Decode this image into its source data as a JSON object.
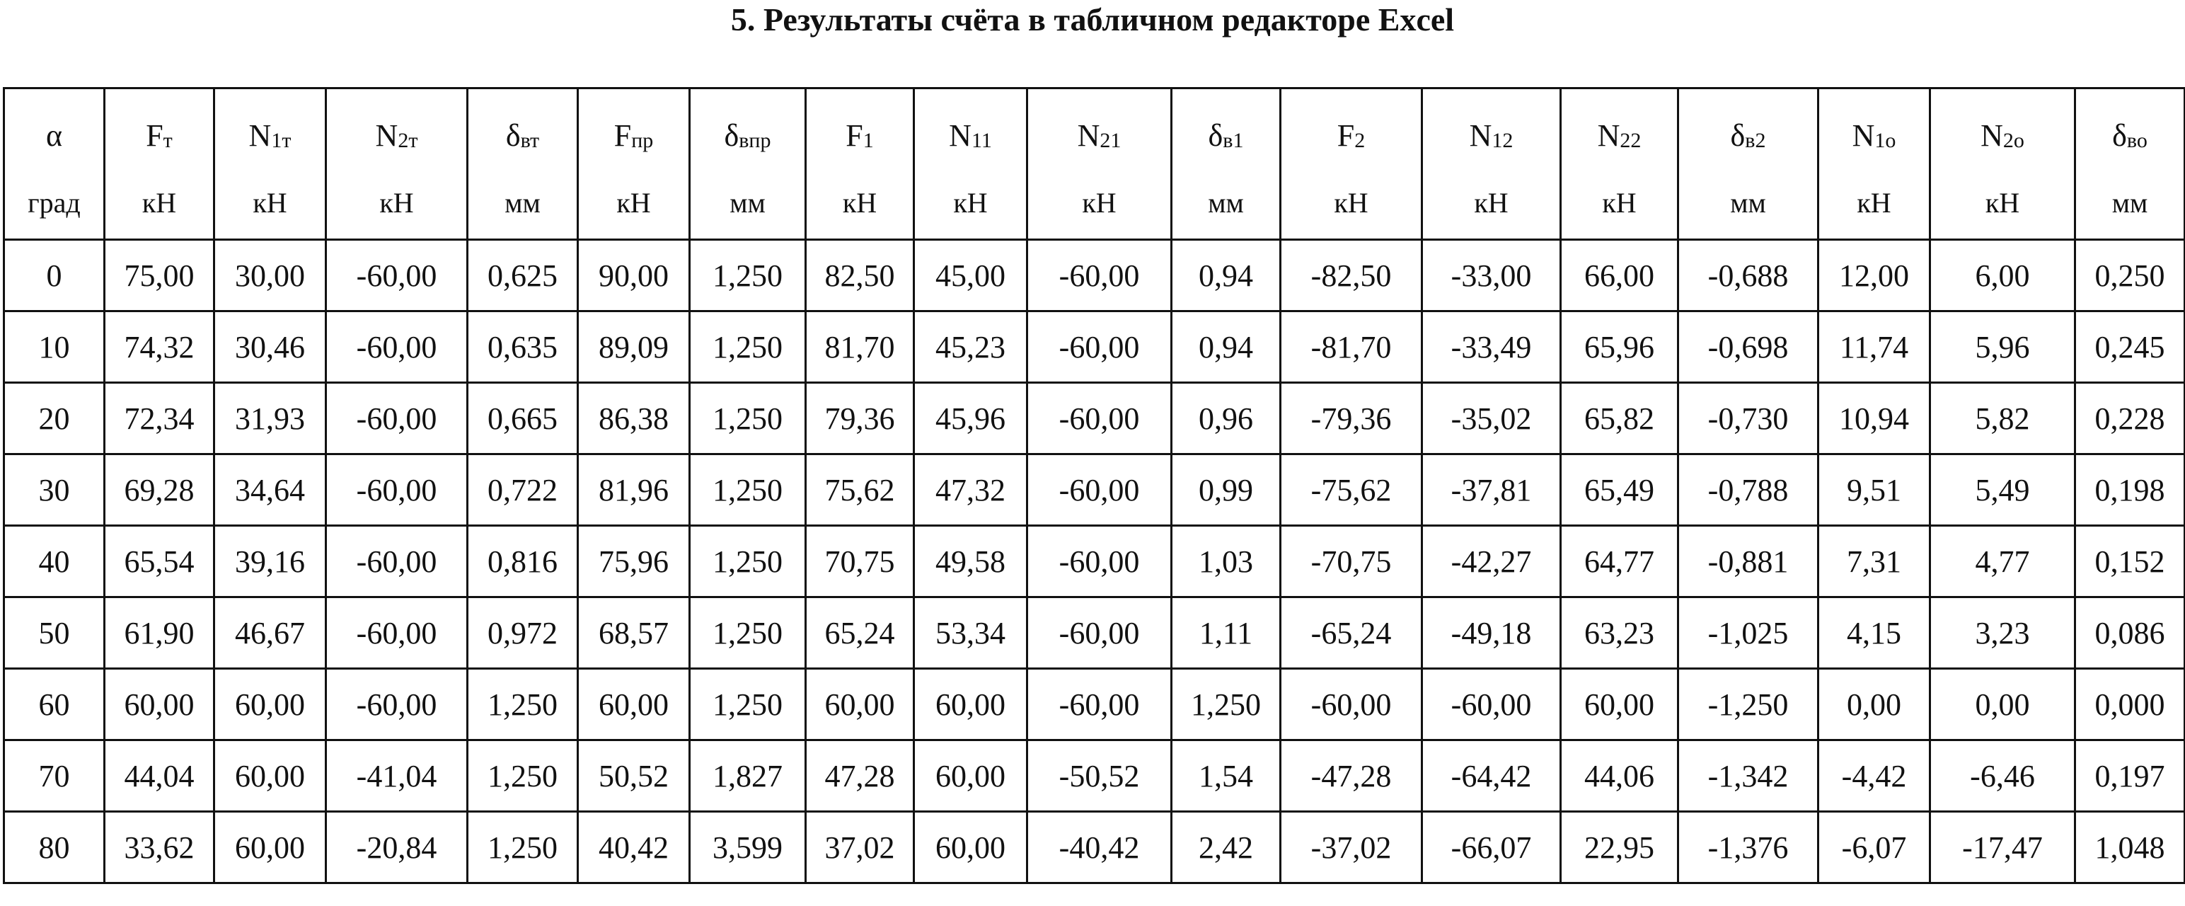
{
  "header": {
    "title": "5. Результаты счёта в табличном редакторе Excel"
  },
  "table": {
    "columns": [
      {
        "symbol": {
          "base": "α"
        },
        "unit": "град"
      },
      {
        "symbol": {
          "base": "F",
          "sub": "т"
        },
        "unit": "кН"
      },
      {
        "symbol": {
          "base": "N",
          "sub": "1т"
        },
        "unit": "кН"
      },
      {
        "symbol": {
          "base": "N",
          "sub": "2т"
        },
        "unit": "кН"
      },
      {
        "symbol": {
          "base": "δ",
          "sub": "вт"
        },
        "unit": "мм"
      },
      {
        "symbol": {
          "base": "F",
          "sub": "пр"
        },
        "unit": "кН"
      },
      {
        "symbol": {
          "base": "δ",
          "sub": "впр"
        },
        "unit": "мм"
      },
      {
        "symbol": {
          "base": "F",
          "sub": "1"
        },
        "unit": "кН"
      },
      {
        "symbol": {
          "base": "N",
          "sub": "11"
        },
        "unit": "кН"
      },
      {
        "symbol": {
          "base": "N",
          "sub": "21"
        },
        "unit": "кН"
      },
      {
        "symbol": {
          "base": "δ",
          "sub": "в1"
        },
        "unit": "мм"
      },
      {
        "symbol": {
          "base": "F",
          "sub": "2"
        },
        "unit": "кН"
      },
      {
        "symbol": {
          "base": "N",
          "sub": "12"
        },
        "unit": "кН"
      },
      {
        "symbol": {
          "base": "N",
          "sub": "22"
        },
        "unit": "кН"
      },
      {
        "symbol": {
          "base": "δ",
          "sub": "в2"
        },
        "unit": "мм"
      },
      {
        "symbol": {
          "base": "N",
          "sub": "1о"
        },
        "unit": "кН"
      },
      {
        "symbol": {
          "base": "N",
          "sub": "2о"
        },
        "unit": "кН"
      },
      {
        "symbol": {
          "base": "δ",
          "sub": "во"
        },
        "unit": "мм"
      }
    ],
    "rows": [
      [
        "0",
        "75,00",
        "30,00",
        "-60,00",
        "0,625",
        "90,00",
        "1,250",
        "82,50",
        "45,00",
        "-60,00",
        "0,94",
        "-82,50",
        "-33,00",
        "66,00",
        "-0,688",
        "12,00",
        "6,00",
        "0,250"
      ],
      [
        "10",
        "74,32",
        "30,46",
        "-60,00",
        "0,635",
        "89,09",
        "1,250",
        "81,70",
        "45,23",
        "-60,00",
        "0,94",
        "-81,70",
        "-33,49",
        "65,96",
        "-0,698",
        "11,74",
        "5,96",
        "0,245"
      ],
      [
        "20",
        "72,34",
        "31,93",
        "-60,00",
        "0,665",
        "86,38",
        "1,250",
        "79,36",
        "45,96",
        "-60,00",
        "0,96",
        "-79,36",
        "-35,02",
        "65,82",
        "-0,730",
        "10,94",
        "5,82",
        "0,228"
      ],
      [
        "30",
        "69,28",
        "34,64",
        "-60,00",
        "0,722",
        "81,96",
        "1,250",
        "75,62",
        "47,32",
        "-60,00",
        "0,99",
        "-75,62",
        "-37,81",
        "65,49",
        "-0,788",
        "9,51",
        "5,49",
        "0,198"
      ],
      [
        "40",
        "65,54",
        "39,16",
        "-60,00",
        "0,816",
        "75,96",
        "1,250",
        "70,75",
        "49,58",
        "-60,00",
        "1,03",
        "-70,75",
        "-42,27",
        "64,77",
        "-0,881",
        "7,31",
        "4,77",
        "0,152"
      ],
      [
        "50",
        "61,90",
        "46,67",
        "-60,00",
        "0,972",
        "68,57",
        "1,250",
        "65,24",
        "53,34",
        "-60,00",
        "1,11",
        "-65,24",
        "-49,18",
        "63,23",
        "-1,025",
        "4,15",
        "3,23",
        "0,086"
      ],
      [
        "60",
        "60,00",
        "60,00",
        "-60,00",
        "1,250",
        "60,00",
        "1,250",
        "60,00",
        "60,00",
        "-60,00",
        "1,250",
        "-60,00",
        "-60,00",
        "60,00",
        "-1,250",
        "0,00",
        "0,00",
        "0,000"
      ],
      [
        "70",
        "44,04",
        "60,00",
        "-41,04",
        "1,250",
        "50,52",
        "1,827",
        "47,28",
        "60,00",
        "-50,52",
        "1,54",
        "-47,28",
        "-64,42",
        "44,06",
        "-1,342",
        "-4,42",
        "-6,46",
        "0,197"
      ],
      [
        "80",
        "33,62",
        "60,00",
        "-20,84",
        "1,250",
        "40,42",
        "3,599",
        "37,02",
        "60,00",
        "-40,42",
        "2,42",
        "-37,02",
        "-66,07",
        "22,95",
        "-1,376",
        "-6,07",
        "-17,47",
        "1,048"
      ]
    ]
  }
}
